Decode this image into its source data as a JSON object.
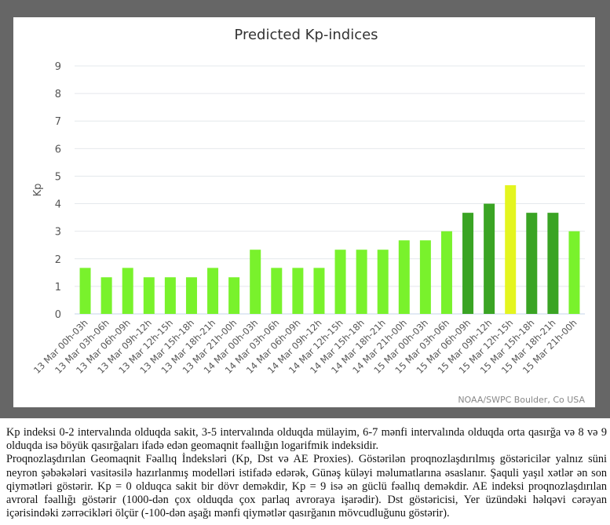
{
  "chart_data": {
    "type": "bar",
    "title": "Predicted Kp-indices",
    "xlabel": "",
    "ylabel": "Kp",
    "ylim": [
      0,
      9
    ],
    "yticks": [
      "0",
      "1",
      "2",
      "3",
      "4",
      "5",
      "6",
      "7",
      "8",
      "9"
    ],
    "grid": true,
    "categories": [
      "13 Mar 00h-03h",
      "13 Mar 03h-06h",
      "13 Mar 06h-09h",
      "13 Mar 09h-12h",
      "13 Mar 12h-15h",
      "13 Mar 15h-18h",
      "13 Mar 18h-21h",
      "13 Mar 21h-00h",
      "14 Mar 00h-03h",
      "14 Mar 03h-06h",
      "14 Mar 06h-09h",
      "14 Mar 09h-12h",
      "14 Mar 12h-15h",
      "14 Mar 15h-18h",
      "14 Mar 18h-21h",
      "14 Mar 21h-00h",
      "15 Mar 00h-03h",
      "15 Mar 03h-06h",
      "15 Mar 06h-09h",
      "15 Mar 09h-12h",
      "15 Mar 12h-15h",
      "15 Mar 15h-18h",
      "15 Mar 18h-21h",
      "15 Mar 21h-00h"
    ],
    "values": [
      1.67,
      1.33,
      1.67,
      1.33,
      1.33,
      1.33,
      1.67,
      1.33,
      2.33,
      1.67,
      1.67,
      1.67,
      2.33,
      2.33,
      2.33,
      2.67,
      2.67,
      3,
      3.67,
      4,
      4.67,
      3.67,
      3.67,
      3
    ],
    "colors": {
      "low": "#79f22c",
      "moderate": "#3aa424",
      "high": "#e4f51f"
    },
    "credit": "NOAA/SWPC Boulder, Co USA"
  },
  "caption": {
    "p1": "Kp indeksi 0-2 intervalında olduqda sakit, 3-5 intervalında olduqda mülayim, 6-7 mənfi intervalında olduqda orta qasırğa və 8 və 9 olduqda isə böyük qasırğaları ifadə edən geomaqnit fəallığın logarifmik indeksidir.",
    "p2": "Proqnozlaşdırılan Geomaqnit Fəallıq İndeksləri (Kp, Dst və AE Proxies). Göstərilən proqnozlaşdırılmış göstəricilər yalnız süni neyron şəbəkələri vasitəsilə hazırlanmış modelləri istifadə edərək, Günəş küləyi məlumatlarına əsaslanır. Şaquli yaşıl xətlər ən son qiymətləri göstərir. Kp = 0 olduqca sakit bir dövr deməkdir, Kp = 9 isə ən güclü fəallıq deməkdir. AE indeksi proqnozlaşdırılan avroral fəallığı göstərir (1000-dən çox olduqda çox parlaq avroraya işarədir). Dst göstəricisi, Yer üzündəki həlqəvi cərəyan içərisindəki zərrəcikləri ölçür (-100-dən aşağı mənfi qiymətlər qasırğanın mövcudluğunu göstərir)."
  }
}
